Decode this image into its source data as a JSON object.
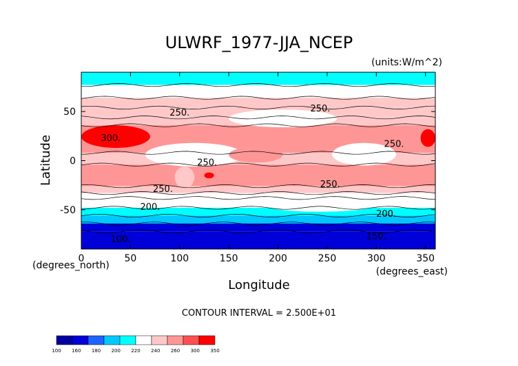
{
  "chart_data": {
    "type": "heatmap",
    "title": "ULWRF_1977-JJA_NCEP",
    "units_label": "(units:W/m^2)",
    "xlabel": "Longitude",
    "ylabel": "Latitude",
    "x_unit_label": "(degrees_east)",
    "y_unit_label": "(degrees_north)",
    "xlim": [
      0,
      360
    ],
    "ylim": [
      -90,
      90
    ],
    "x_ticks": [
      0,
      50,
      100,
      150,
      200,
      250,
      300,
      350
    ],
    "y_ticks": [
      -50,
      0,
      50
    ],
    "contour_interval_text": "CONTOUR INTERVAL = 2.500E+01",
    "contour_levels": [
      100,
      125,
      150,
      175,
      200,
      225,
      250,
      275,
      300,
      325
    ],
    "colorbar": {
      "ticks": [
        100,
        160,
        180,
        200,
        220,
        240,
        260,
        300,
        350
      ],
      "colors": [
        "#0000a0",
        "#0000d8",
        "#1e64ff",
        "#00c8ff",
        "#00ffff",
        "#ffffff",
        "#ffc8c8",
        "#ff9696",
        "#ff5050",
        "#ff0000"
      ]
    },
    "contour_labels": [
      {
        "text": "250.",
        "lon": 243,
        "lat": 50
      },
      {
        "text": "250.",
        "lon": 100,
        "lat": 46
      },
      {
        "text": "300.",
        "lon": 30,
        "lat": 20
      },
      {
        "text": "250.",
        "lon": 128,
        "lat": -5
      },
      {
        "text": "250.",
        "lon": 318,
        "lat": 14
      },
      {
        "text": "250.",
        "lon": 253,
        "lat": -27
      },
      {
        "text": "250.",
        "lon": 83,
        "lat": -32
      },
      {
        "text": "200.",
        "lon": 70,
        "lat": -50
      },
      {
        "text": "200.",
        "lon": 310,
        "lat": -57
      },
      {
        "text": "150.",
        "lon": 300,
        "lat": -80
      },
      {
        "text": "100.",
        "lon": 40,
        "lat": -83
      }
    ],
    "bands": [
      {
        "lat": [
          77,
          90
        ],
        "value": 215
      },
      {
        "lat": [
          64,
          77
        ],
        "value": 232
      },
      {
        "lat": [
          54,
          64
        ],
        "value": 240
      },
      {
        "lat": [
          44,
          54
        ],
        "value": 250
      },
      {
        "lat": [
          36,
          44
        ],
        "value": 258
      },
      {
        "lat": [
          8,
          36
        ],
        "value": 276
      },
      {
        "lat": [
          -4,
          8
        ],
        "value": 255
      },
      {
        "lat": [
          -26,
          -4
        ],
        "value": 276
      },
      {
        "lat": [
          -33,
          -26
        ],
        "value": 252
      },
      {
        "lat": [
          -38,
          -33
        ],
        "value": 238
      },
      {
        "lat": [
          -48,
          -38
        ],
        "value": 226
      },
      {
        "lat": [
          -56,
          -48
        ],
        "value": 210
      },
      {
        "lat": [
          -64,
          -56
        ],
        "value": 190
      },
      {
        "lat": [
          -72,
          -64
        ],
        "value": 150
      },
      {
        "lat": [
          -90,
          -72
        ],
        "value": 115
      }
    ],
    "anomalies": [
      {
        "lon": [
          0,
          70
        ],
        "lat": [
          13,
          36
        ],
        "value": 310
      },
      {
        "lon": [
          345,
          360
        ],
        "lat": [
          14,
          32
        ],
        "value": 310
      },
      {
        "lon": [
          65,
          165
        ],
        "lat": [
          -6,
          18
        ],
        "value": 222
      },
      {
        "lon": [
          255,
          320
        ],
        "lat": [
          -5,
          18
        ],
        "value": 222
      },
      {
        "lon": [
          150,
          205
        ],
        "lat": [
          -2,
          14
        ],
        "value": 278
      },
      {
        "lon": [
          150,
          260
        ],
        "lat": [
          34,
          52
        ],
        "value": 228
      },
      {
        "lon": [
          95,
          115
        ],
        "lat": [
          -28,
          -6
        ],
        "value": 256
      },
      {
        "lon": [
          125,
          135
        ],
        "lat": [
          -18,
          -12
        ],
        "value": 305
      },
      {
        "lon": [
          185,
          300
        ],
        "lat": [
          -52,
          -38
        ],
        "value": 235
      }
    ]
  }
}
